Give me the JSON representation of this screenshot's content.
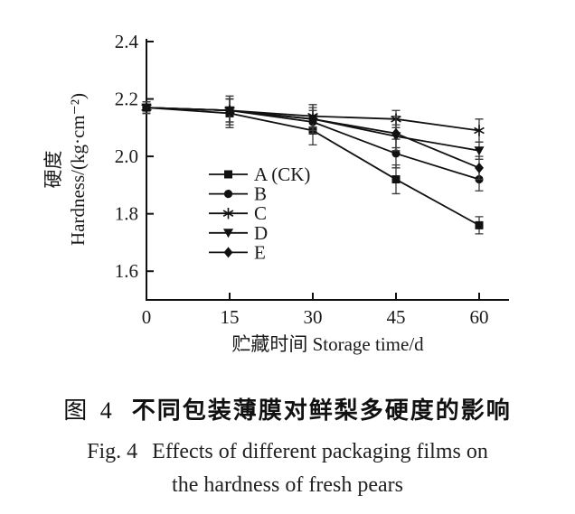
{
  "figure": {
    "caption_zh_prefix": "图 4",
    "caption_zh_title": "不同包装薄膜对鲜梨多硬度的影响",
    "caption_en_prefix": "Fig. 4",
    "caption_en_line1": "Effects of different packaging films on",
    "caption_en_line2": "the hardness of fresh pears"
  },
  "chart_data": {
    "type": "line",
    "title": "",
    "xlabel": "贮藏时间 Storage time/d",
    "ylabel_line1": "硬度",
    "ylabel_line2": "Hardness/(kg·cm⁻²)",
    "x": [
      0,
      15,
      30,
      45,
      60
    ],
    "xticks": [
      0,
      15,
      30,
      45,
      60
    ],
    "yticks": [
      1.6,
      1.8,
      2.0,
      2.2,
      2.4
    ],
    "xlim": [
      0,
      65
    ],
    "ylim": [
      1.5,
      2.4
    ],
    "grid": false,
    "legend_position": "inside lower-left",
    "error_bars": true,
    "color": "#111111",
    "series": [
      {
        "name": "A (CK)",
        "marker": "square",
        "values": [
          2.17,
          2.15,
          2.09,
          1.92,
          1.76
        ],
        "errors": [
          0.02,
          0.05,
          0.05,
          0.05,
          0.03
        ]
      },
      {
        "name": "B",
        "marker": "circle",
        "values": [
          2.17,
          2.16,
          2.12,
          2.01,
          1.92
        ],
        "errors": [
          0.02,
          0.05,
          0.04,
          0.05,
          0.04
        ]
      },
      {
        "name": "C",
        "marker": "asterisk",
        "values": [
          2.17,
          2.16,
          2.14,
          2.13,
          2.09
        ],
        "errors": [
          0.02,
          0.04,
          0.04,
          0.03,
          0.04
        ]
      },
      {
        "name": "D",
        "marker": "triangle-down",
        "values": [
          2.17,
          2.16,
          2.13,
          2.07,
          2.02
        ],
        "errors": [
          0.02,
          0.04,
          0.05,
          0.04,
          0.03
        ]
      },
      {
        "name": "E",
        "marker": "diamond",
        "values": [
          2.17,
          2.16,
          2.13,
          2.08,
          1.96
        ],
        "errors": [
          0.02,
          0.05,
          0.04,
          0.06,
          0.04
        ]
      }
    ]
  }
}
